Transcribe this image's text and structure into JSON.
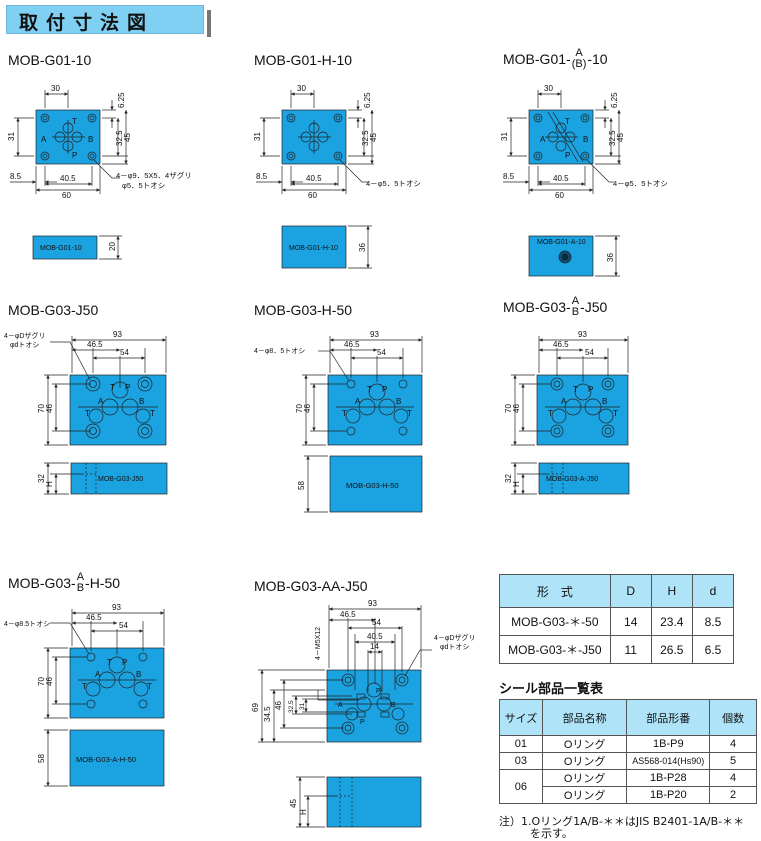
{
  "header": {
    "title": "取付寸法図"
  },
  "colors": {
    "body": "#1ba2e1",
    "header": "#7fd0f2",
    "table_head": "#aee3f8"
  },
  "g01": {
    "names": [
      "MOB-G01-10",
      "MOB-G01-H-10",
      "MOB-G01-",
      "-10"
    ],
    "frac_top": "A",
    "frac_bot": "(B)",
    "dims": {
      "w30": "30",
      "h625": "6.25",
      "h31": "31",
      "h325": "32.5",
      "h45": "45",
      "w85": "8.5",
      "w405": "40.5",
      "w60": "60",
      "h20": "20",
      "h36": "36"
    },
    "ports": {
      "A": "A",
      "B": "B",
      "P": "P",
      "T": "T"
    },
    "note_a": "4－φ9．5X5．4ザグリ",
    "note_b": "φ5．5トオシ",
    "note_c": "4－φ5．5トオシ",
    "side_labels": [
      "MOB-G01-10",
      "MOB-G01-H-10",
      "MOB-G01-A-10"
    ]
  },
  "g03": {
    "names": [
      "MOB-G03-J50",
      "MOB-G03-H-50",
      "MOB-G03-",
      "-J50",
      "MOB-G03-",
      "-H-50",
      "MOB-G03-AA-J50"
    ],
    "frac_top": "A",
    "frac_bot": "B",
    "dims": {
      "w93": "93",
      "w465": "46.5",
      "w54": "54",
      "h70": "70",
      "h46": "46",
      "h32": "32",
      "hH": "H",
      "h58": "58",
      "w405": "40.5",
      "w14": "14",
      "h345": "34.5",
      "h69": "69",
      "h45": "45",
      "m5": "4－M5X12",
      "s32": "32.5",
      "s31": "31"
    },
    "note_d1": "4－φDザグリ",
    "note_d2": "φdトオシ",
    "note_85a": "4－φ8．5トオシ",
    "note_85b": "4－φ8.5トオシ",
    "side_labels": [
      "MOB-G03-J50",
      "MOB-G03-H-50",
      "MOB-G03-A-J50",
      "MOB-G03-A-H-50"
    ]
  },
  "dim_table": {
    "headers": [
      "形　式",
      "D",
      "H",
      "d"
    ],
    "rows": [
      [
        "MOB-G03-＊-50",
        "14",
        "23.4",
        "8.5"
      ],
      [
        "MOB-G03-＊-J50",
        "11",
        "26.5",
        "6.5"
      ]
    ]
  },
  "seal": {
    "title": "シール部品一覧表",
    "headers": [
      "サイズ",
      "部品名称",
      "部品形番",
      "個数"
    ],
    "rows": [
      [
        "01",
        "Oリング",
        "1B-P9",
        "4"
      ],
      [
        "03",
        "Oリング",
        "AS568-014(Hs90)",
        "5"
      ],
      [
        "06",
        "Oリング",
        "1B-P28",
        "4"
      ],
      [
        "",
        "Oリング",
        "1B-P20",
        "2"
      ]
    ],
    "note1": "注）1.Oリング1A/B-＊＊はJIS B2401-1A/B-＊＊",
    "note2": "を示す。"
  }
}
